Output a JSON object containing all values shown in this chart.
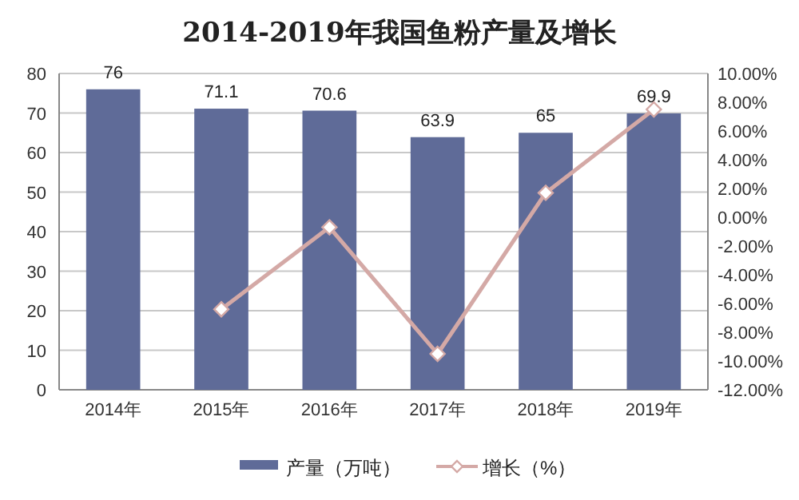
{
  "chart_data": {
    "type": "bar",
    "title": "2014-2019年我国鱼粉产量及增长",
    "categories": [
      "2014年",
      "2015年",
      "2016年",
      "2017年",
      "2018年",
      "2019年"
    ],
    "series": [
      {
        "name": "产量（万吨）",
        "color": "#5f6b98",
        "values": [
          76,
          71.1,
          70.6,
          63.9,
          65,
          69.9
        ],
        "value_labels": [
          "76",
          "71.1",
          "70.6",
          "63.9",
          "65",
          "69.9"
        ]
      },
      {
        "name": "增长（%）",
        "type": "line",
        "axis": "y2",
        "color": "#d4a9a6",
        "marker": "diamond",
        "values": [
          null,
          -6.4,
          -0.7,
          -9.5,
          1.7,
          7.5
        ]
      }
    ],
    "ylim": [
      0,
      80
    ],
    "yticks": [
      0,
      10,
      20,
      30,
      40,
      50,
      60,
      70,
      80
    ],
    "y2lim": [
      -12,
      10
    ],
    "y2ticks": [
      {
        "value": -12,
        "label": "-12.00%"
      },
      {
        "value": -10,
        "label": "-10.00%"
      },
      {
        "value": -8,
        "label": "-8.00%"
      },
      {
        "value": -6,
        "label": "-6.00%"
      },
      {
        "value": -4,
        "label": "-4.00%"
      },
      {
        "value": -2,
        "label": "-2.00%"
      },
      {
        "value": 0,
        "label": "0.00%"
      },
      {
        "value": 2,
        "label": "2.00%"
      },
      {
        "value": 4,
        "label": "4.00%"
      },
      {
        "value": 6,
        "label": "6.00%"
      },
      {
        "value": 8,
        "label": "8.00%"
      },
      {
        "value": 10,
        "label": "10.00%"
      }
    ],
    "grid": "y",
    "legend": "bottom"
  }
}
